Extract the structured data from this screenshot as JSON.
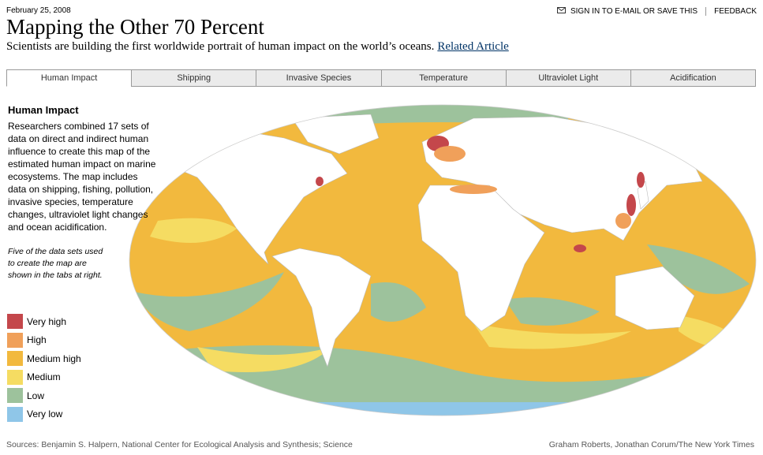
{
  "header": {
    "date": "February 25, 2008",
    "title": "Mapping the Other 70 Percent",
    "subtitle": "Scientists are building the first worldwide portrait of human impact on the world’s oceans.",
    "related_link": "Related Article",
    "actions": [
      "SIGN IN TO E-MAIL OR SAVE THIS",
      "FEEDBACK"
    ]
  },
  "tabs": [
    "Human Impact",
    "Shipping",
    "Invasive Species",
    "Temperature",
    "Ultraviolet Light",
    "Acidification"
  ],
  "sidebar": {
    "heading": "Human Impact",
    "body": "Researchers combined 17 sets of data on direct and indirect human influence to create this map of the estimated human impact on marine ecosystems. The map includes data on shipping, fishing, pollution, invasive species, temperature changes, ultraviolet light changes and ocean acidification.",
    "note": "Five of the data sets used to create the map are shown in the tabs at right."
  },
  "legend": [
    {
      "label": "Very high",
      "color": "#c4474b"
    },
    {
      "label": "High",
      "color": "#f0a05a"
    },
    {
      "label": "Medium high",
      "color": "#f2b93e"
    },
    {
      "label": "Medium",
      "color": "#f5dc62"
    },
    {
      "label": "Low",
      "color": "#9dc29c"
    },
    {
      "label": "Very low",
      "color": "#8fc6e8"
    }
  ],
  "footer": {
    "sources": "Sources: Benjamin S. Halpern, National Center for Ecological Analysis and Synthesis; Science",
    "credit": "Graham Roberts, Jonathan Corum/The New York Times"
  }
}
